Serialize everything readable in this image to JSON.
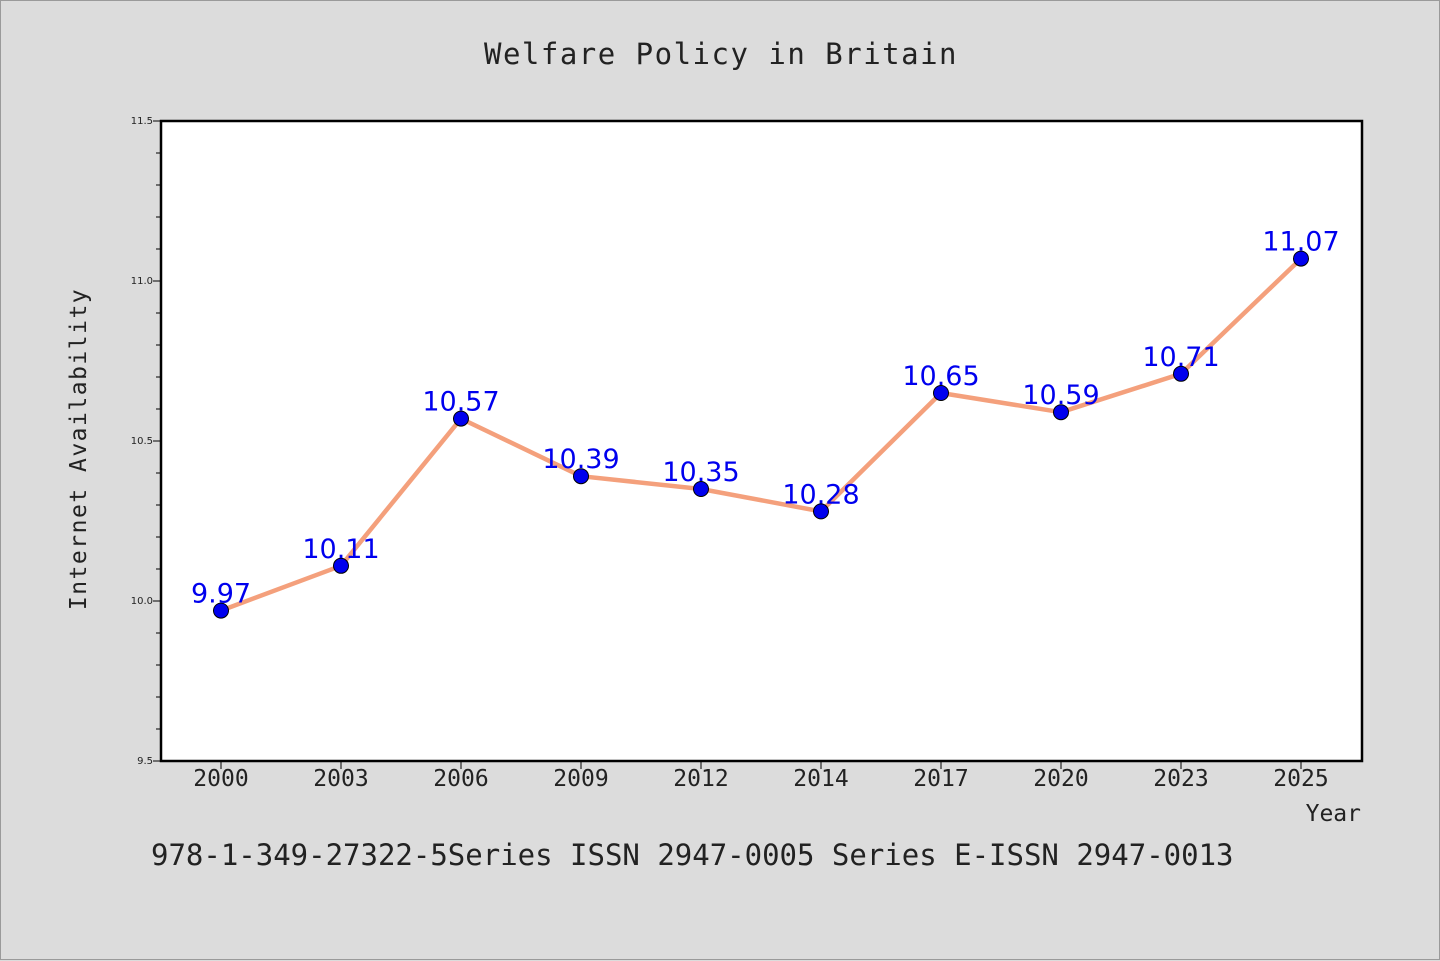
{
  "chart_data": {
    "type": "line",
    "title": "Welfare Policy in Britain",
    "xlabel": "Year",
    "ylabel": "Internet Availability",
    "categories": [
      "2000",
      "2003",
      "2006",
      "2009",
      "2012",
      "2014",
      "2017",
      "2020",
      "2023",
      "2025"
    ],
    "series": [
      {
        "values": [
          9.97,
          10.11,
          10.57,
          10.39,
          10.35,
          10.28,
          10.65,
          10.59,
          10.71,
          11.07
        ],
        "line_color": "#f4a07c",
        "marker_color": "#0000ee",
        "label_color": "#0000ee"
      }
    ],
    "data_labels": [
      "9.97",
      "10.11",
      "10.57",
      "10.39",
      "10.35",
      "10.28",
      "10.65",
      "10.59",
      "10.71",
      "11.07"
    ],
    "ylim": [
      9.5,
      11.5
    ],
    "y_ticks": [
      "9.5",
      "10.0",
      "10.5",
      "11.0",
      "11.5"
    ],
    "grid": false,
    "legend": "none"
  },
  "footer_text": "978-1-349-27322-5Series ISSN 2947-0005 Series E-ISSN 2947-0013",
  "colors": {
    "background": "#dcdcdc",
    "plot_area": "#ffffff",
    "axis": "#000000",
    "text": "#222222"
  }
}
